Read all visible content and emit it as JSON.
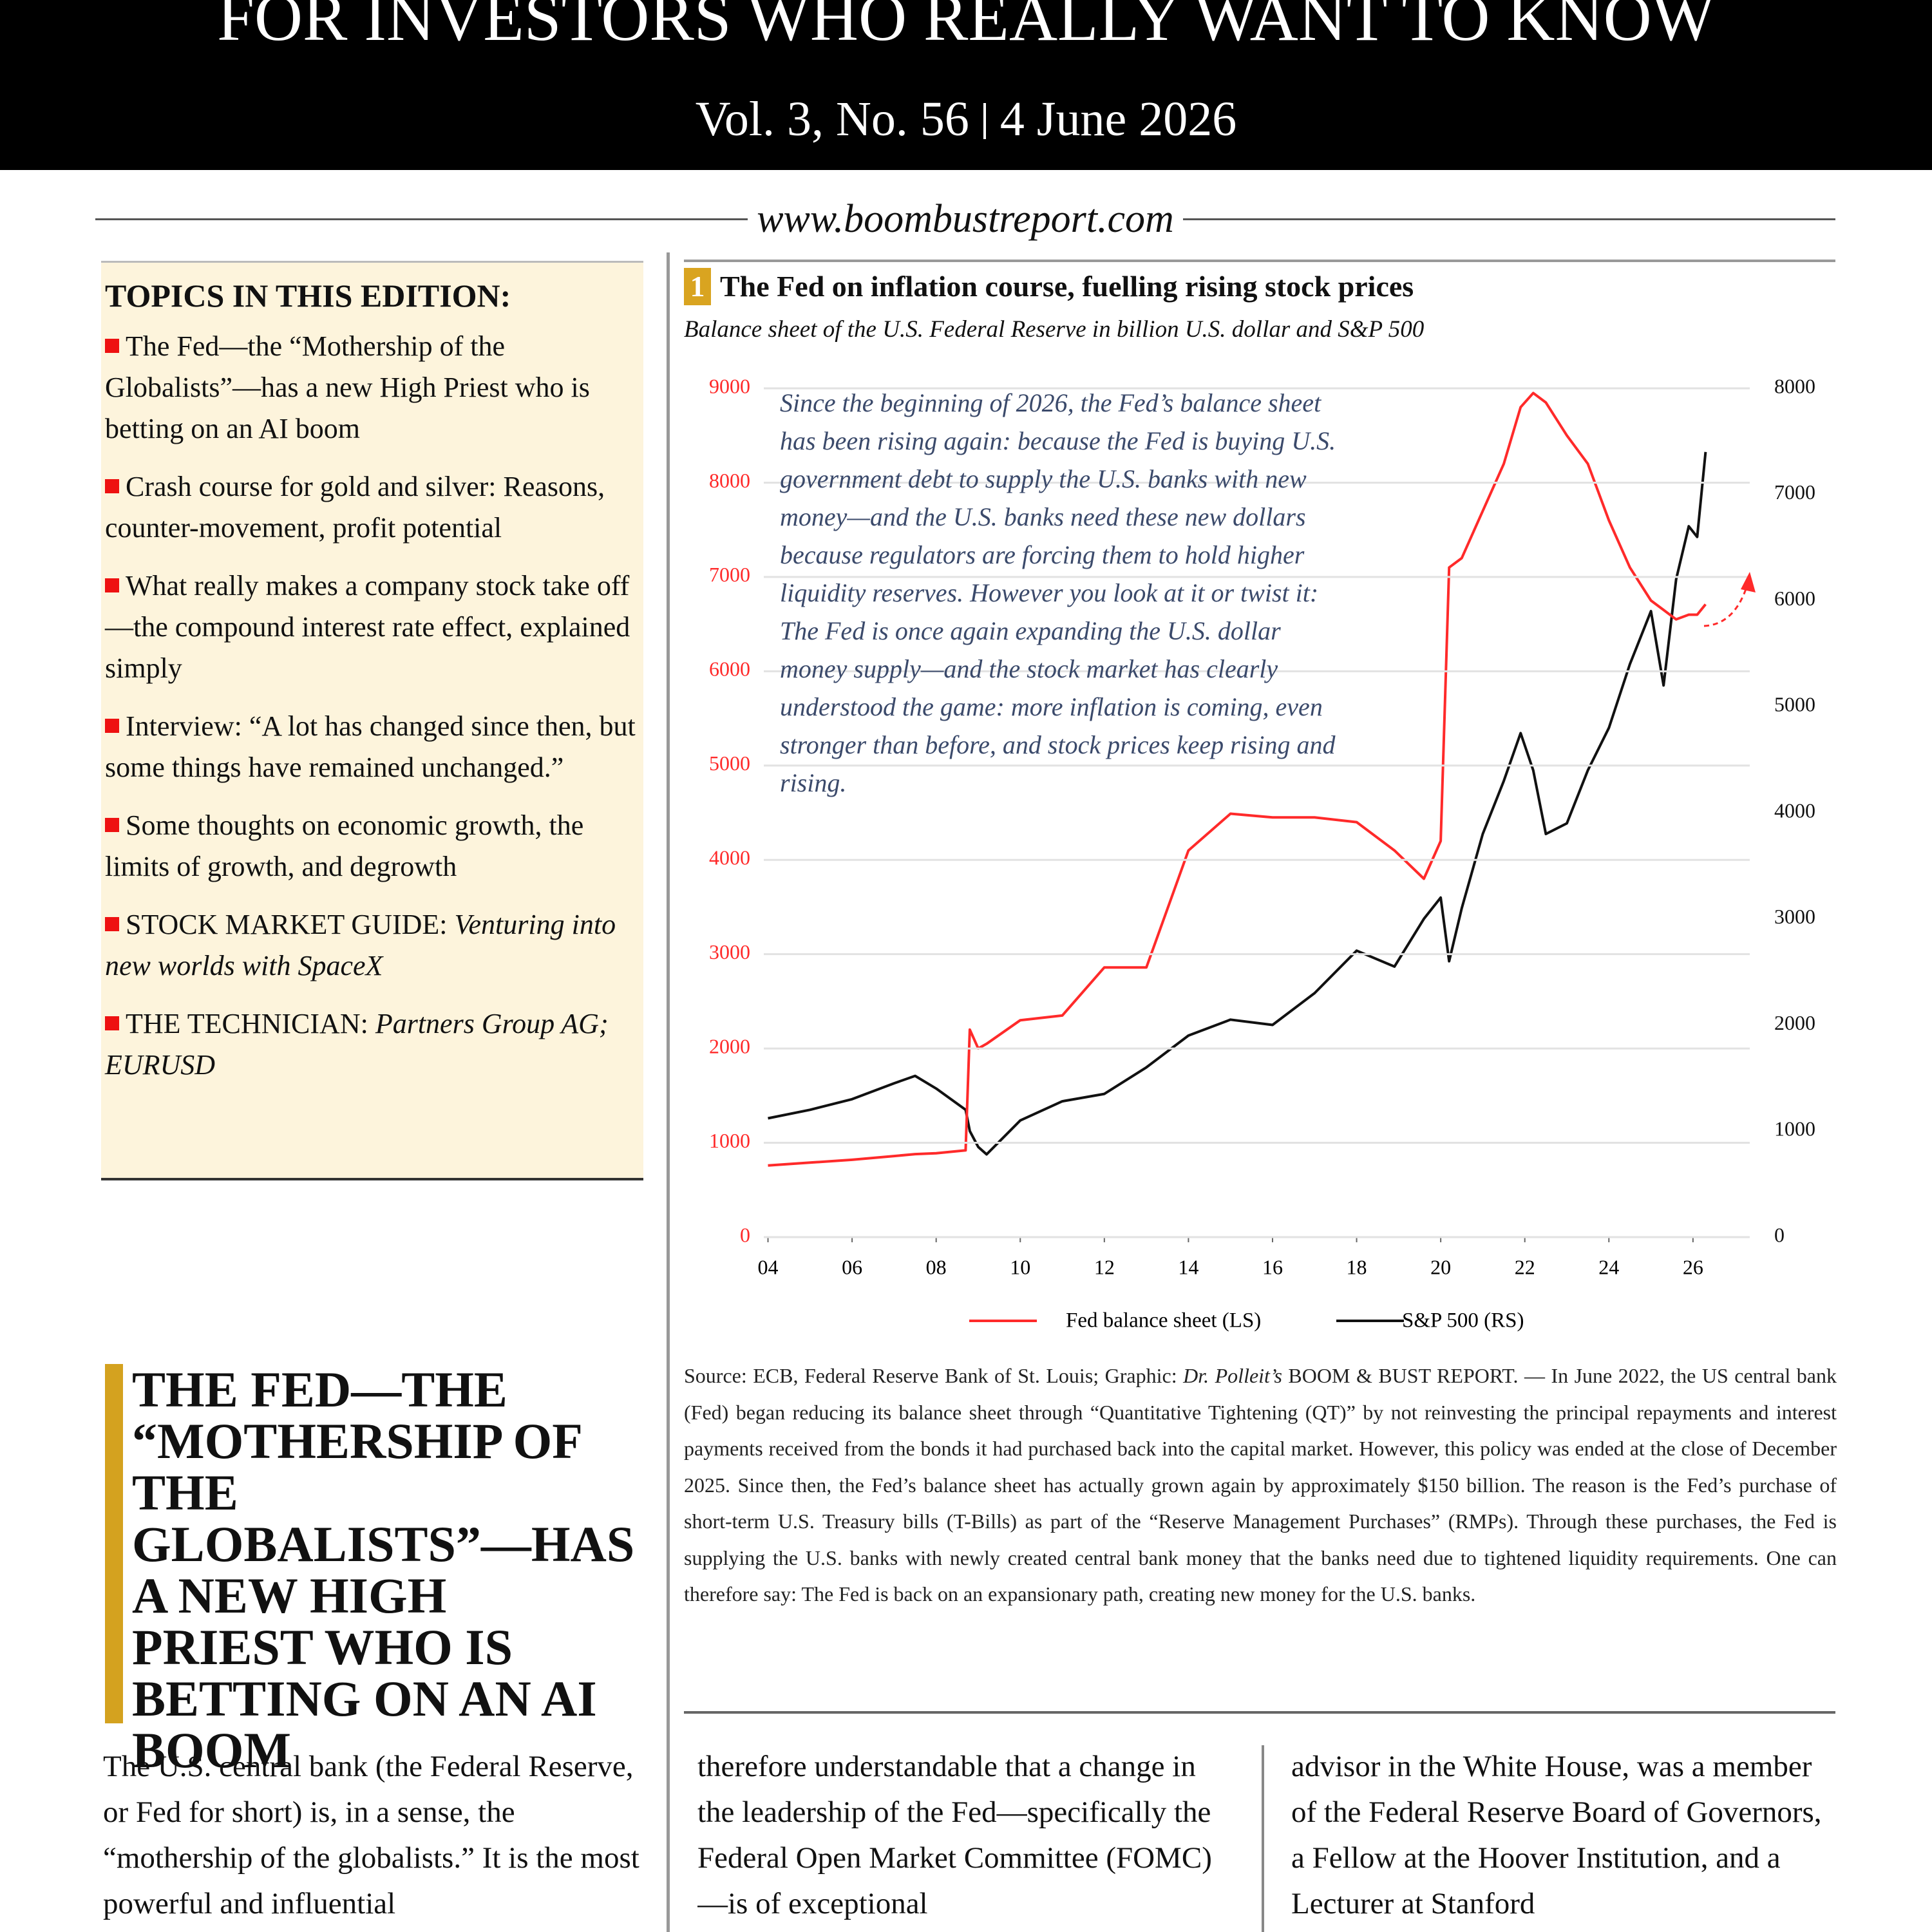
{
  "header": {
    "title": "FOR INVESTORS WHO REALLY WANT TO KNOW",
    "issue": "Vol. 3, No. 56",
    "date": "4 June 2026",
    "website": "www.boombustreport.com"
  },
  "topics": {
    "heading": "TOPICS IN THIS EDITION:",
    "items": [
      {
        "text": "The Fed—the “Mothership of the Globalists”—has a new High Priest who is betting on an AI boom"
      },
      {
        "text": "Crash course for gold and silver: Reasons, counter-movement, profit potential"
      },
      {
        "text": "What really makes a company stock take off—the compound interest rate effect, explained simply"
      },
      {
        "text": "Interview: “A lot has changed since then, but some things have remained unchanged.”"
      },
      {
        "text": "Some thoughts on economic growth, the limits of growth, and degrowth"
      },
      {
        "text": "STOCK MARKET GUIDE: ",
        "italic": "Venturing into new worlds with SpaceX"
      },
      {
        "text": "THE TECHNICIAN: ",
        "italic": "Partners Group AG; EURUSD"
      }
    ]
  },
  "chart_data": {
    "type": "line",
    "figure_number": "1",
    "title": "The Fed on inflation course, fuelling rising stock prices",
    "subtitle": "Balance sheet of the U.S. Federal Reserve in billion U.S. dollar and S&P 500",
    "annotation": "Since the beginning of 2026, the Fed’s balance sheet has been rising again: because the Fed is buying U.S. government debt to supply the U.S. banks with new money—and the U.S. banks need these new dollars because regulators are forcing them to hold higher liquidity reserves. However you look at it or twist it: The Fed is once again expanding the U.S. dollar money supply—and the stock market has clearly understood the game: more inflation is coming, even stronger than before, and stock prices keep rising and rising.",
    "x": [
      2004,
      2005,
      2006,
      2007,
      2007.5,
      2008,
      2008.7,
      2008.8,
      2009,
      2009.2,
      2010,
      2011,
      2012,
      2013,
      2014,
      2015,
      2016,
      2017,
      2018,
      2018.9,
      2019.6,
      2020,
      2020.2,
      2020.5,
      2021,
      2021.5,
      2021.9,
      2022.2,
      2022.5,
      2023,
      2023.5,
      2024,
      2024.5,
      2025,
      2025.3,
      2025.6,
      2025.9,
      2026.1,
      2026.3
    ],
    "series": [
      {
        "name": "Fed balance sheet (LS)",
        "color": "#ff2a2a",
        "axis": "y",
        "values": [
          760,
          790,
          820,
          860,
          880,
          890,
          920,
          2200,
          2000,
          2050,
          2300,
          2350,
          2860,
          2860,
          4100,
          4490,
          4450,
          4450,
          4400,
          4100,
          3800,
          4200,
          7100,
          7200,
          7700,
          8200,
          8800,
          8950,
          8850,
          8500,
          8200,
          7600,
          7100,
          6750,
          6650,
          6550,
          6600,
          6600,
          6710
        ]
      },
      {
        "name": "S&P 500 (RS)",
        "color": "#111111",
        "axis": "y2",
        "values": [
          1120,
          1200,
          1300,
          1450,
          1520,
          1400,
          1200,
          1000,
          850,
          780,
          1100,
          1280,
          1350,
          1600,
          1900,
          2050,
          2000,
          2300,
          2700,
          2550,
          3000,
          3200,
          2600,
          3100,
          3800,
          4300,
          4750,
          4400,
          3800,
          3900,
          4400,
          4800,
          5400,
          5900,
          5200,
          6200,
          6700,
          6600,
          7400
        ]
      }
    ],
    "xlim": [
      2003.9,
      2027.35
    ],
    "xticks": [
      {
        "value": 2004,
        "label": "04"
      },
      {
        "value": 2006,
        "label": "06"
      },
      {
        "value": 2008,
        "label": "08"
      },
      {
        "value": 2010,
        "label": "10"
      },
      {
        "value": 2012,
        "label": "12"
      },
      {
        "value": 2014,
        "label": "14"
      },
      {
        "value": 2016,
        "label": "16"
      },
      {
        "value": 2018,
        "label": "18"
      },
      {
        "value": 2020,
        "label": "20"
      },
      {
        "value": 2022,
        "label": "22"
      },
      {
        "value": 2024,
        "label": "24"
      },
      {
        "value": 2026,
        "label": "26"
      }
    ],
    "ylim": [
      0,
      9000
    ],
    "yticks": [
      0,
      1000,
      2000,
      3000,
      4000,
      5000,
      6000,
      7000,
      8000,
      9000
    ],
    "y2lim": [
      0,
      8000
    ],
    "y2ticks": [
      0,
      1000,
      2000,
      3000,
      4000,
      5000,
      6000,
      7000,
      8000
    ],
    "grid": true,
    "source": [
      {
        "text": "Source: ECB, Federal Reserve Bank of St. Louis; Graphic: "
      },
      {
        "text": "Dr. Polleit’s",
        "italic": true
      },
      {
        "text": " BOOM & BUST REPORT. — In June 2022, the US central bank (Fed) began reducing its balance sheet through “Quantitative Tightening (QT)” by not reinvesting the principal repayments and interest payments received from the bonds it had purchased back into the capital market. However, this policy was ended at the close of December 2025. Since then, the Fed’s balance sheet has actually grown again by approximately $150 billion. The reason is the Fed’s purchase of short-term U.S. Treasury bills (T-Bills) as part of the “Reserve Management Purchases” (RMPs). Through these purchases, the Fed is supplying the U.S. banks with newly created central bank money that the banks need due to tightened liquidity requirements. One can therefore say: The Fed is back on an expansionary path, creating new money for the U.S. banks."
      }
    ]
  },
  "article": {
    "headline": "THE FED—THE “MOTHERSHIP OF THE GLOBALISTS”—HAS A NEW HIGH PRIEST WHO IS BETTING ON AN AI BOOM",
    "columns": [
      "The U.S. central bank (the Federal Reserve, or Fed for short) is, in a sense, the “mothership of the globalists.” It is the most powerful and influential",
      "therefore understandable that a change in the leadership of the Fed—specifically the Federal Open Market Committee (FOMC)—is of exceptional",
      "advisor in the White House, was a member of the Federal Reserve Board of Governors, a Fellow at the Hoover Institution, and a Lecturer at Stanford"
    ]
  }
}
